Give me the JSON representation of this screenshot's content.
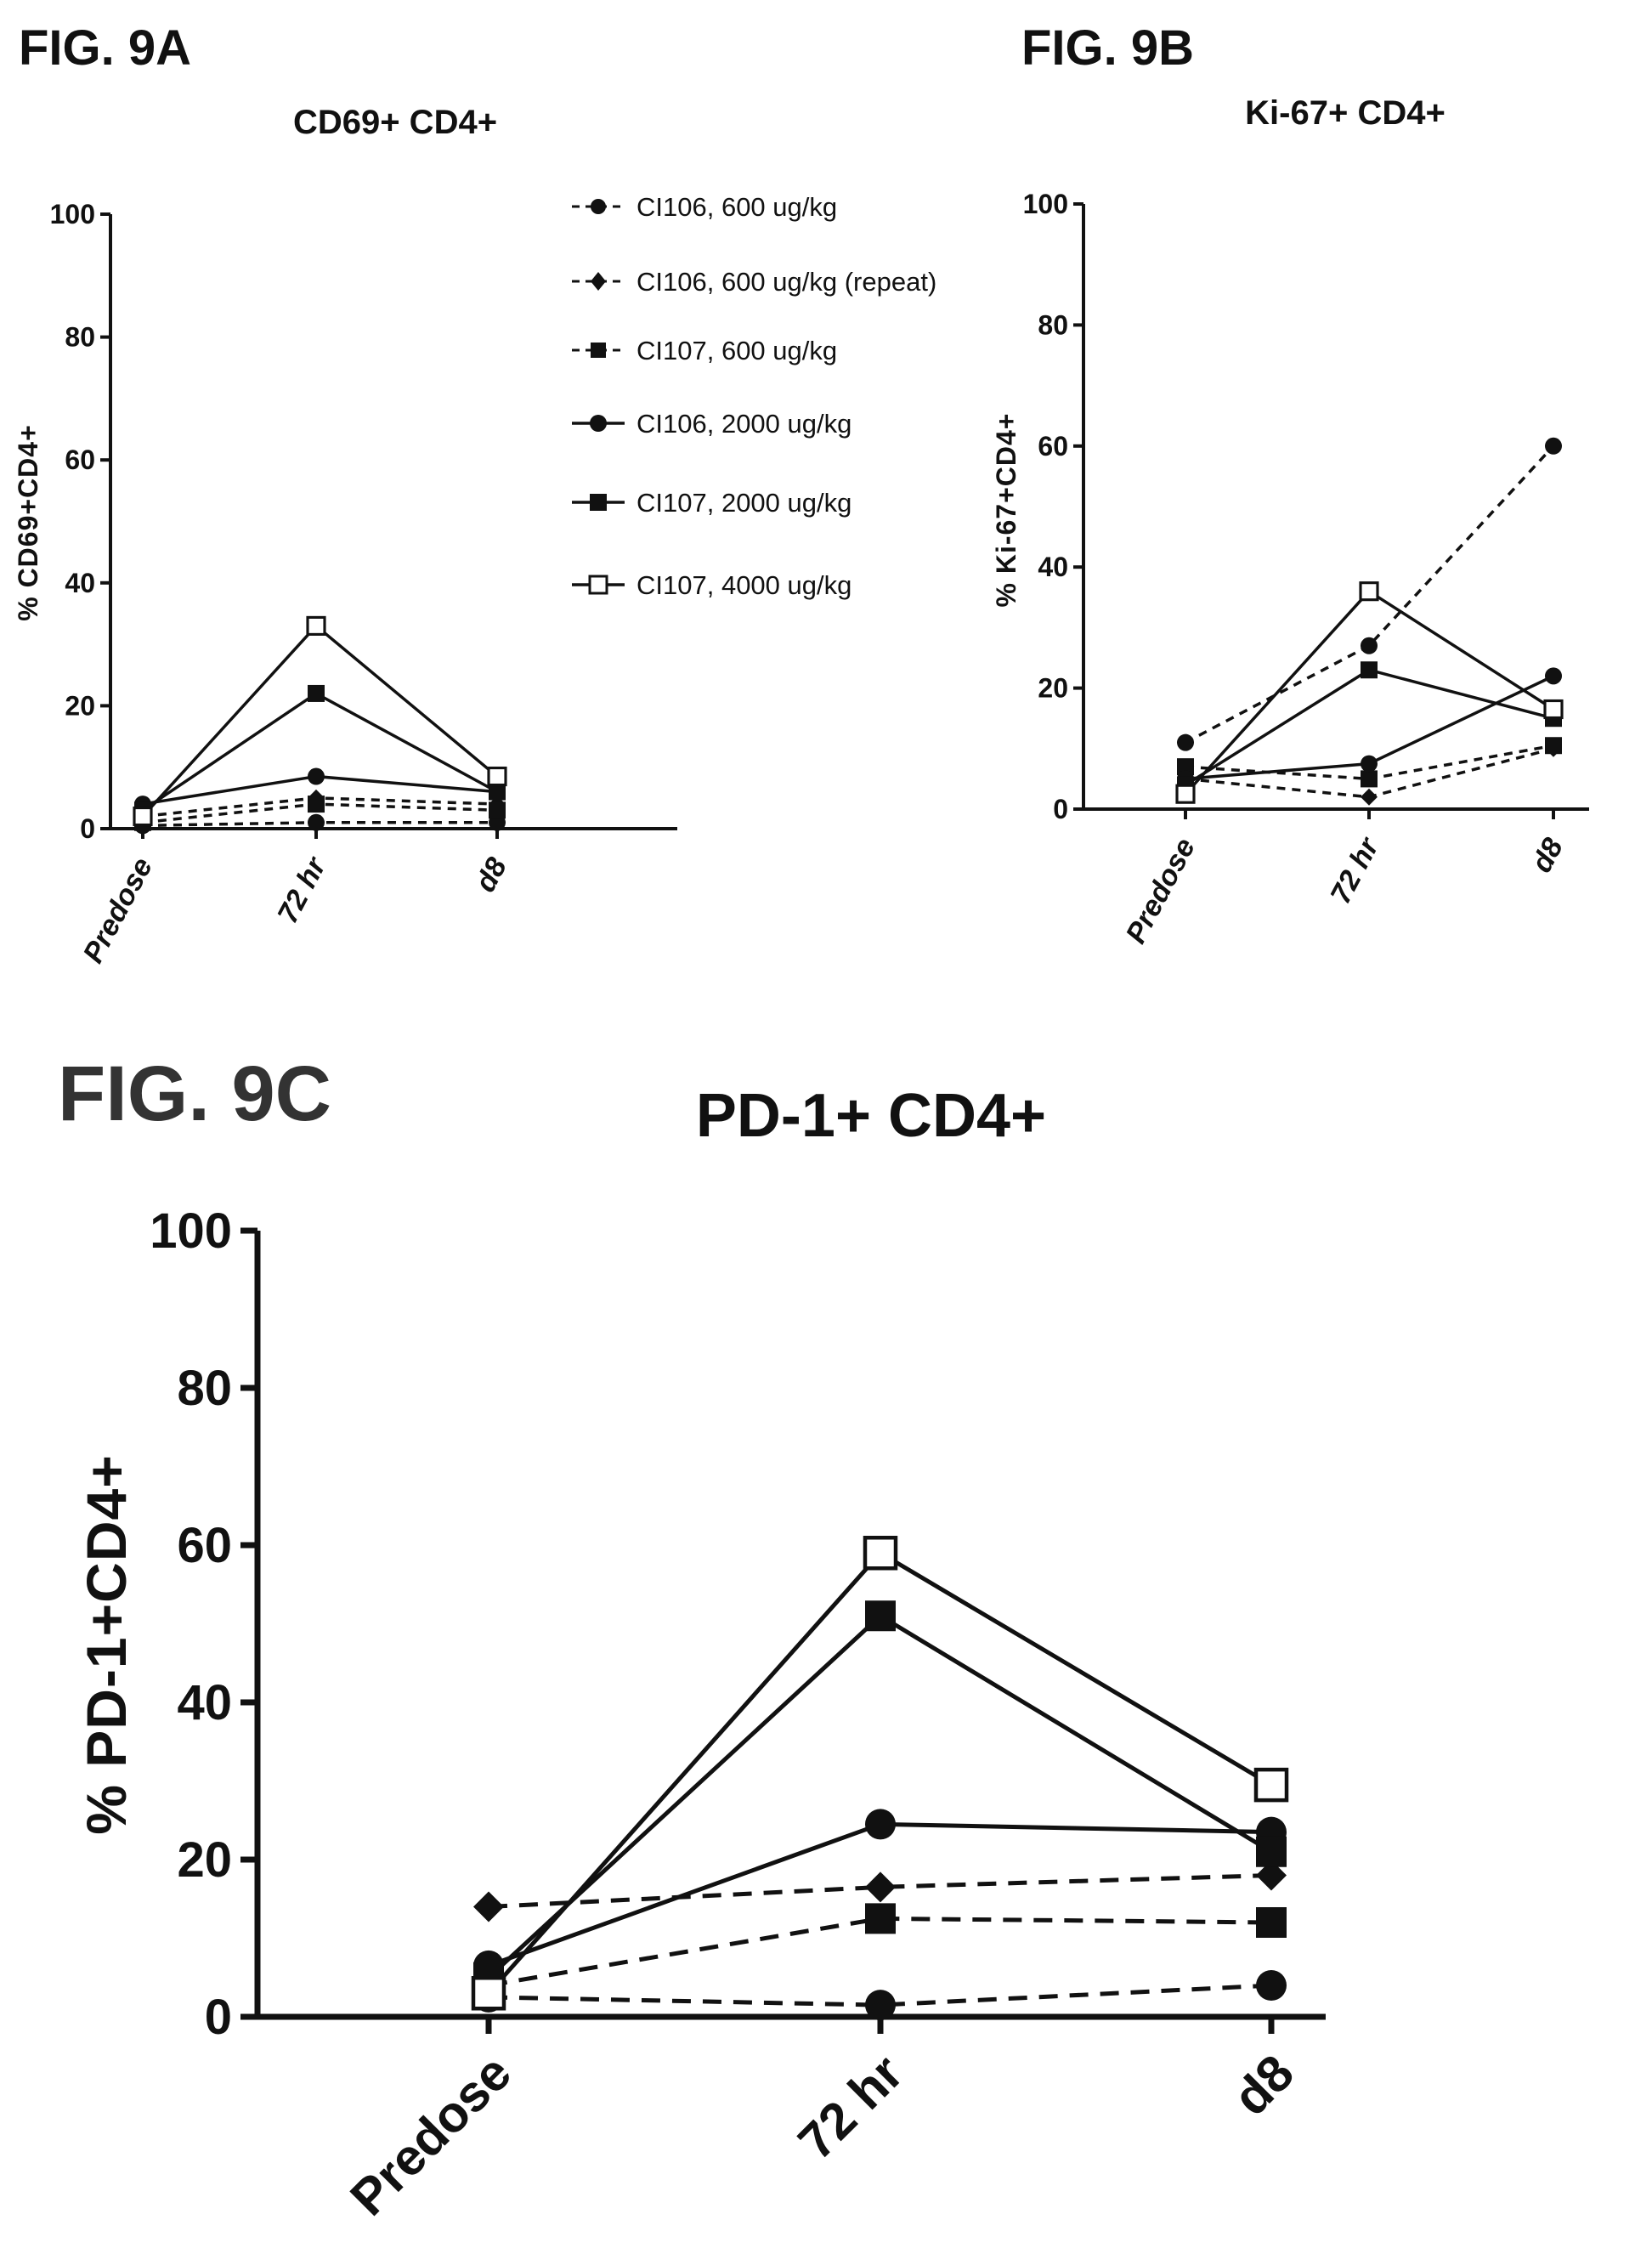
{
  "legend": [
    {
      "label": "CI106, 600 ug/kg",
      "marker": "circle",
      "dash": true
    },
    {
      "label": "CI106, 600 ug/kg (repeat)",
      "marker": "diamond",
      "dash": true
    },
    {
      "label": "CI107, 600 ug/kg",
      "marker": "square",
      "dash": true
    },
    {
      "label": "CI106, 2000 ug/kg",
      "marker": "circle",
      "dash": false
    },
    {
      "label": "CI107, 2000 ug/kg",
      "marker": "square",
      "dash": false
    },
    {
      "label": "CI107, 4000 ug/kg",
      "marker": "open-square",
      "dash": false
    }
  ],
  "chart_data": [
    {
      "fig_label": "FIG. 9A",
      "type": "line",
      "title": "CD69+ CD4+",
      "xlabel": "",
      "ylabel": "% CD69+CD4+",
      "categories": [
        "Predose",
        "72 hr",
        "d8"
      ],
      "ylim": [
        0,
        100
      ],
      "yticks": [
        "0",
        "20",
        "40",
        "60",
        "80",
        "100"
      ],
      "series": [
        {
          "name": "CI106, 600 ug/kg",
          "values": [
            0.5,
            1,
            1
          ]
        },
        {
          "name": "CI106, 600 ug/kg (repeat)",
          "values": [
            2,
            5,
            4
          ]
        },
        {
          "name": "CI107, 600 ug/kg",
          "values": [
            1,
            4,
            3
          ]
        },
        {
          "name": "CI106, 2000 ug/kg",
          "values": [
            4,
            8.5,
            6
          ]
        },
        {
          "name": "CI107, 2000 ug/kg",
          "values": [
            3,
            22,
            6
          ]
        },
        {
          "name": "CI107, 4000 ug/kg",
          "values": [
            2,
            33,
            8.5
          ]
        }
      ]
    },
    {
      "fig_label": "FIG. 9B",
      "type": "line",
      "title": "Ki-67+ CD4+",
      "xlabel": "",
      "ylabel": "% Ki-67+CD4+",
      "categories": [
        "Predose",
        "72 hr",
        "d8"
      ],
      "ylim": [
        0,
        100
      ],
      "yticks": [
        "0",
        "20",
        "40",
        "60",
        "80",
        "100"
      ],
      "series": [
        {
          "name": "CI106, 600 ug/kg",
          "values": [
            11,
            27,
            60
          ]
        },
        {
          "name": "CI106, 600 ug/kg (repeat)",
          "values": [
            5,
            2,
            10
          ]
        },
        {
          "name": "CI107, 600 ug/kg",
          "values": [
            7,
            5,
            10.5
          ]
        },
        {
          "name": "CI106, 2000 ug/kg",
          "values": [
            5,
            7.5,
            22
          ]
        },
        {
          "name": "CI107, 2000 ug/kg",
          "values": [
            4,
            23,
            15
          ]
        },
        {
          "name": "CI107, 4000 ug/kg",
          "values": [
            2.5,
            36,
            16.5
          ]
        }
      ]
    },
    {
      "fig_label": "FIG. 9C",
      "type": "line",
      "title": "PD-1+ CD4+",
      "xlabel": "",
      "ylabel": "% PD-1+CD4+",
      "categories": [
        "Predose",
        "72 hr",
        "d8"
      ],
      "ylim": [
        0,
        100
      ],
      "yticks": [
        "0",
        "20",
        "40",
        "60",
        "80",
        "100"
      ],
      "series": [
        {
          "name": "CI106, 600 ug/kg",
          "values": [
            2.5,
            1.5,
            4
          ]
        },
        {
          "name": "CI106, 600 ug/kg (repeat)",
          "values": [
            14,
            16.5,
            18
          ]
        },
        {
          "name": "CI107, 600 ug/kg",
          "values": [
            4,
            12.5,
            12
          ]
        },
        {
          "name": "CI106, 2000 ug/kg",
          "values": [
            6.5,
            24.5,
            23.5
          ]
        },
        {
          "name": "CI107, 2000 ug/kg",
          "values": [
            5,
            51,
            21
          ]
        },
        {
          "name": "CI107, 4000 ug/kg",
          "values": [
            3,
            59,
            29.5
          ]
        }
      ]
    }
  ]
}
